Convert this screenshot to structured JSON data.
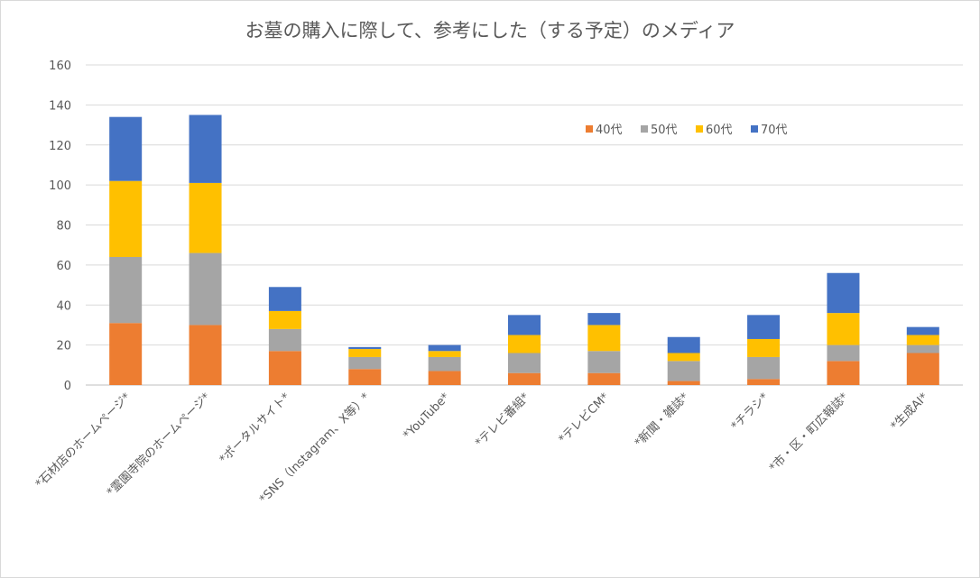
{
  "chart_data": {
    "type": "bar",
    "stacked": true,
    "title": "お墓の購入に際して、参考にした（する予定）のメディア",
    "xlabel": "",
    "ylabel": "",
    "ylim": [
      0,
      160
    ],
    "yticks": [
      0,
      20,
      40,
      60,
      80,
      100,
      120,
      140,
      160
    ],
    "grid": true,
    "legend_position": "top-right",
    "categories": [
      "*石材店のホームページ*",
      "*霊園寺院のホームページ*",
      "*ポータルサイト*",
      "*SNS（Instagram、X等）*",
      "*YouTube*",
      "*テレビ番組*",
      "*テレビCM*",
      "*新聞・雑誌*",
      "*チラシ*",
      "*市・区・町広報誌*",
      "*生成AI*"
    ],
    "series": [
      {
        "name": "40代",
        "color": "#ED7D31",
        "values": [
          31,
          30,
          17,
          8,
          7,
          6,
          6,
          2,
          3,
          12,
          16
        ]
      },
      {
        "name": "50代",
        "color": "#A5A5A5",
        "values": [
          33,
          36,
          11,
          6,
          7,
          10,
          11,
          10,
          11,
          8,
          4
        ]
      },
      {
        "name": "60代",
        "color": "#FFC000",
        "values": [
          38,
          35,
          9,
          4,
          3,
          9,
          13,
          4,
          9,
          16,
          5
        ]
      },
      {
        "name": "70代",
        "color": "#4472C4",
        "values": [
          32,
          34,
          12,
          1,
          3,
          10,
          6,
          8,
          12,
          20,
          4
        ]
      }
    ]
  }
}
